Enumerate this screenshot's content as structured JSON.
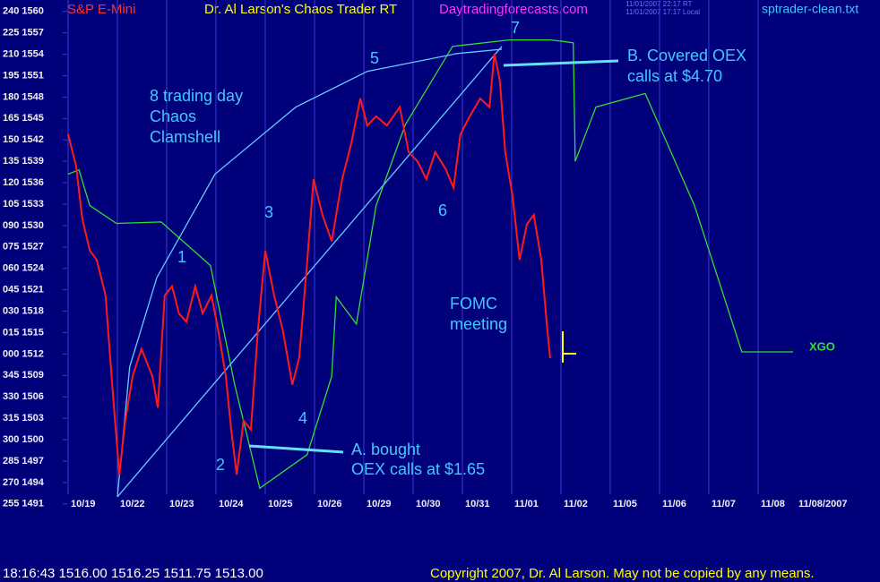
{
  "chart_data": {
    "type": "line",
    "symbol": "S&P E-Mini",
    "title": "Dr. Al Larson's Chaos Trader RT",
    "website": "Daytradingforecasts.com",
    "timestamps": [
      "11/01/2007 22:17 RT",
      "11/01/2007 17:17 Local"
    ],
    "filename": "sptrader-clean.txt",
    "status_line": "18:16:43  1516.00 1516.25 1511.75 1513.00",
    "copyright": "Copyright 2007, Dr. Al Larson. May not be copied by any means.",
    "end_label": "XGO",
    "x_end_label": "11/08/2007",
    "xlim": [
      0,
      14.71
    ],
    "ylim": [
      1490.1,
      1561.6
    ],
    "xticks": [
      {
        "value": 0,
        "label": "10/19"
      },
      {
        "value": 1,
        "label": "10/22"
      },
      {
        "value": 2,
        "label": "10/23"
      },
      {
        "value": 3,
        "label": "10/24"
      },
      {
        "value": 4,
        "label": "10/25"
      },
      {
        "value": 5,
        "label": "10/26"
      },
      {
        "value": 6,
        "label": "10/29"
      },
      {
        "value": 7,
        "label": "10/30"
      },
      {
        "value": 8,
        "label": "10/31"
      },
      {
        "value": 9,
        "label": "11/01"
      },
      {
        "value": 10,
        "label": "11/02"
      },
      {
        "value": 11,
        "label": "11/05"
      },
      {
        "value": 12,
        "label": "11/06"
      },
      {
        "value": 13,
        "label": "11/07"
      },
      {
        "value": 14,
        "label": "11/08"
      }
    ],
    "yticks": [
      {
        "value": 1560,
        "label": "240 1560"
      },
      {
        "value": 1557,
        "label": "225 1557"
      },
      {
        "value": 1554,
        "label": "210 1554"
      },
      {
        "value": 1551,
        "label": "195 1551"
      },
      {
        "value": 1548,
        "label": "180 1548"
      },
      {
        "value": 1545,
        "label": "165 1545"
      },
      {
        "value": 1542,
        "label": "150 1542"
      },
      {
        "value": 1539,
        "label": "135 1539"
      },
      {
        "value": 1536,
        "label": "120 1536"
      },
      {
        "value": 1533,
        "label": "105 1533"
      },
      {
        "value": 1530,
        "label": "090 1530"
      },
      {
        "value": 1527,
        "label": "075 1527"
      },
      {
        "value": 1524,
        "label": "060 1524"
      },
      {
        "value": 1521,
        "label": "045 1521"
      },
      {
        "value": 1518,
        "label": "030 1518"
      },
      {
        "value": 1515,
        "label": "015 1515"
      },
      {
        "value": 1512,
        "label": "000 1512"
      },
      {
        "value": 1509,
        "label": "345 1509"
      },
      {
        "value": 1506,
        "label": "330 1506"
      },
      {
        "value": 1503,
        "label": "315 1503"
      },
      {
        "value": 1500,
        "label": "300 1500"
      },
      {
        "value": 1497,
        "label": "285 1497"
      },
      {
        "value": 1494,
        "label": "270 1494"
      },
      {
        "value": 1491,
        "label": "255 1491"
      }
    ],
    "series": [
      {
        "color": "#33dd33",
        "x": [
          0,
          0.22,
          0.44,
          0.98,
          1.89,
          2.89,
          3.38,
          3.89,
          4.85,
          5.35,
          5.44,
          5.85,
          6.25,
          6.84,
          7.8,
          8.95,
          9.8,
          10.25,
          10.29,
          10.71,
          11.71,
          12.71,
          13.67,
          14.71
        ],
        "values": [
          1537.2,
          1537.8,
          1532.8,
          1530.3,
          1530.5,
          1524.4,
          1507.7,
          1493.2,
          1497.9,
          1508.9,
          1520.0,
          1516.2,
          1532.8,
          1544.1,
          1555.1,
          1556.0,
          1556.0,
          1555.6,
          1539.0,
          1546.6,
          1548.5,
          1532.8,
          1512.3,
          1512.3
        ]
      },
      {
        "color": "#66ccff",
        "x": [
          1,
          1.25,
          1.8,
          2.98,
          4.62,
          6.07,
          7.89,
          8.8
        ],
        "values": [
          1492.0,
          1510.2,
          1522.7,
          1537.2,
          1546.6,
          1551.6,
          1554.1,
          1554.7
        ]
      },
      {
        "color": "#66ccff",
        "x": [
          1,
          8.8
        ],
        "values": [
          1492.0,
          1555.1
        ]
      },
      {
        "color": "#ff1a1a",
        "x": [
          0,
          0.16,
          0.29,
          0.44,
          0.58,
          0.76,
          0.91,
          1.04,
          1.16,
          1.31,
          1.49,
          1.71,
          1.82,
          1.96,
          2.11,
          2.25,
          2.4,
          2.58,
          2.73,
          2.91,
          3.05,
          3.2,
          3.31,
          3.42,
          3.56,
          3.71,
          3.85,
          4,
          4.18,
          4.36,
          4.55,
          4.69,
          4.84,
          4.98,
          5.16,
          5.35,
          5.56,
          5.75,
          5.93,
          6.07,
          6.25,
          6.47,
          6.73,
          6.91,
          7.09,
          7.27,
          7.45,
          7.67,
          7.82,
          7.96,
          8.15,
          8.36,
          8.55,
          8.65,
          8.76,
          8.87,
          9.02,
          9.16,
          9.31,
          9.45,
          9.6,
          9.71,
          9.78
        ],
        "values": [
          1542.8,
          1538.4,
          1530.9,
          1526.5,
          1525.2,
          1520.2,
          1506.4,
          1495.1,
          1502.7,
          1508.9,
          1512.7,
          1508.9,
          1504.5,
          1520.2,
          1521.5,
          1517.7,
          1516.5,
          1521.5,
          1517.7,
          1520.2,
          1515.2,
          1508.9,
          1501.4,
          1495.1,
          1502.7,
          1501.4,
          1515.2,
          1526.5,
          1520.2,
          1515.2,
          1507.7,
          1511.5,
          1524.0,
          1536.5,
          1531.5,
          1527.8,
          1536.5,
          1541.6,
          1547.8,
          1544.0,
          1545.3,
          1544.0,
          1546.6,
          1540.3,
          1539.0,
          1536.5,
          1540.3,
          1537.8,
          1535.3,
          1542.8,
          1545.3,
          1547.8,
          1546.6,
          1554.1,
          1550.3,
          1540.3,
          1534.0,
          1525.2,
          1530.2,
          1531.5,
          1525.2,
          1516.5,
          1511.4
        ]
      }
    ],
    "annotations": [
      "1",
      "2",
      "3",
      "4",
      "5",
      "6",
      "7",
      "8 trading day",
      "Chaos",
      "Clamshell",
      "FOMC",
      "meeting",
      "A. bought",
      "OEX calls at $1.65",
      "B. Covered OEX",
      "calls at $4.70"
    ]
  }
}
